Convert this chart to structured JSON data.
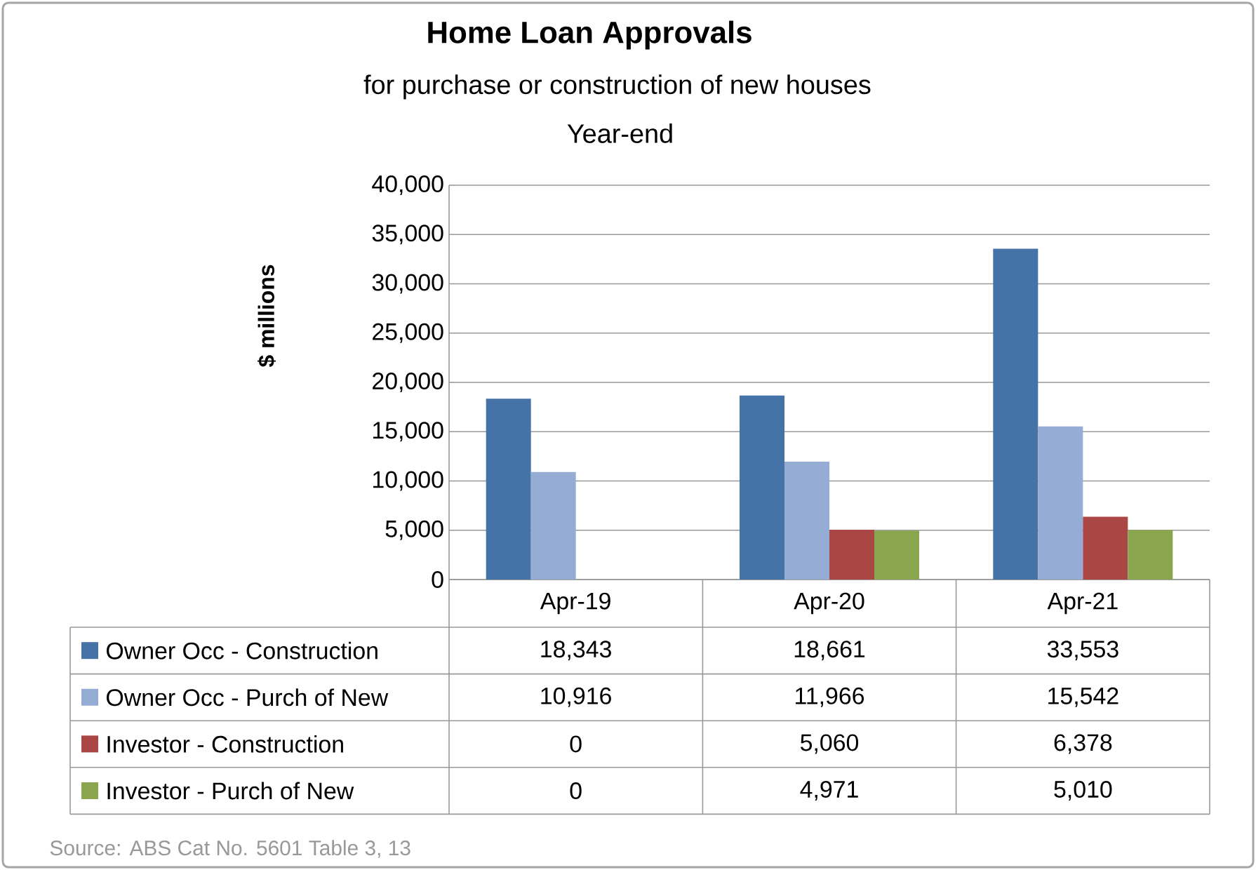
{
  "chart_data": {
    "type": "bar",
    "title": "Home Loan Approvals",
    "subtitle": "for purchase or construction of new houses",
    "ylabel": "$ millions",
    "categories": [
      "Apr-19",
      "Apr-20",
      "Apr-21"
    ],
    "series": [
      {
        "name": "Owner Occ - Construction",
        "color": "#4572a7",
        "values": [
          18343,
          18661,
          33553
        ],
        "value_labels": [
          "18,343",
          "18,661",
          "33,553"
        ]
      },
      {
        "name": "Owner Occ - Purch of New",
        "color": "#95acd5",
        "values": [
          10916,
          11966,
          15542
        ],
        "value_labels": [
          "10,916",
          "11,966",
          "15,542"
        ]
      },
      {
        "name": "Investor - Construction",
        "color": "#aa4643",
        "values": [
          0,
          5060,
          6378
        ],
        "value_labels": [
          "0",
          "5,060",
          "6,378"
        ]
      },
      {
        "name": "Investor - Purch of New",
        "color": "#89a54e",
        "values": [
          0,
          4971,
          5010
        ],
        "value_labels": [
          "0",
          "4,971",
          "5,010"
        ]
      }
    ],
    "ylim": [
      0,
      40000
    ],
    "yticks": [
      {
        "value": 0,
        "label": "0"
      },
      {
        "value": 5000,
        "label": "5,000"
      },
      {
        "value": 10000,
        "label": "10,000"
      },
      {
        "value": 15000,
        "label": "15,000"
      },
      {
        "value": 20000,
        "label": "20,000"
      },
      {
        "value": 25000,
        "label": "25,000"
      },
      {
        "value": 30000,
        "label": "30,000"
      },
      {
        "value": 35000,
        "label": "35,000"
      },
      {
        "value": 40000,
        "label": "40,000"
      }
    ],
    "grid": "y",
    "legend": "bottom",
    "annotations": [
      "Year-end",
      "Source: ABS Cat No. 5601 Table 3, 13"
    ]
  }
}
